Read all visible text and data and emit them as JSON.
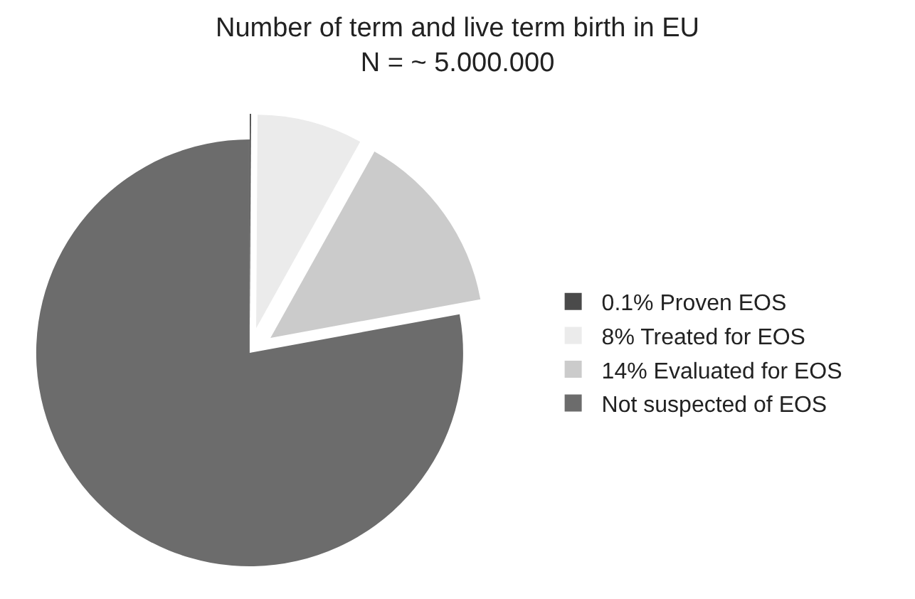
{
  "chart_data": {
    "type": "pie",
    "title": "Number of term and live term birth in EU",
    "subtitle": "N = ~ 5.000.000",
    "categories": [
      "0.1% Proven EOS",
      "8% Treated for EOS",
      "14% Evaluated for EOS",
      "Not suspected of EOS"
    ],
    "values": [
      0.1,
      8,
      14,
      77.9
    ],
    "colors": [
      "#4a4a4a",
      "#ebebeb",
      "#cbcbcb",
      "#6c6c6c"
    ],
    "legend": "right"
  }
}
